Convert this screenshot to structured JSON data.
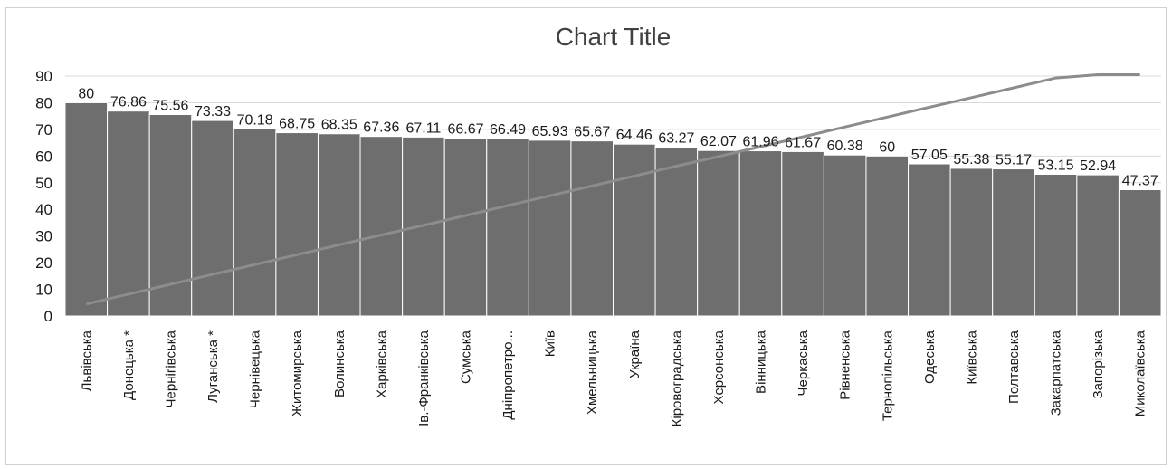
{
  "chart_data": {
    "type": "bar",
    "title": "Chart Title",
    "xlabel": "",
    "ylabel": "",
    "ylim": [
      0,
      90
    ],
    "yticks": [
      0,
      10,
      20,
      30,
      40,
      50,
      60,
      70,
      80,
      90
    ],
    "grid": true,
    "categories": [
      "Львівська",
      "Донецька *",
      "Чернігівська",
      "Луганська *",
      "Чернівецька",
      "Житомирська",
      "Волинська",
      "Харківська",
      "Ів.-Франківська",
      "Сумська",
      "Дніпропетро...",
      "Київ",
      "Хмельницька",
      "Україна",
      "Кіровоградська",
      "Херсонська",
      "Вінницька",
      "Черкаська",
      "Рівненська",
      "Тернопільська",
      "Одеська",
      "Київська",
      "Полтавська",
      "Закарпатська",
      "Запорізька",
      "Миколаївська"
    ],
    "values": [
      80,
      76.86,
      75.56,
      73.33,
      70.18,
      68.75,
      68.35,
      67.36,
      67.11,
      66.67,
      66.49,
      65.93,
      65.67,
      64.46,
      63.27,
      62.07,
      61.96,
      61.67,
      60.38,
      60,
      57.05,
      55.38,
      55.17,
      53.15,
      52.94,
      47.37
    ],
    "data_labels": [
      "80",
      "76.86",
      "75.56",
      "73.33",
      "70.18",
      "68.75",
      "68.35",
      "67.36",
      "67.11",
      "66.67",
      "66.49",
      "65.93",
      "65.67",
      "64.46",
      "63.27",
      "62.07",
      "61.96",
      "61.67",
      "60.38",
      "60",
      "57.05",
      "55.38",
      "55.17",
      "53.15",
      "52.94",
      "47.37"
    ],
    "line_series": {
      "values": [
        4.5,
        8.2,
        11.9,
        15.6,
        19.3,
        23.0,
        26.7,
        30.4,
        34.0,
        37.7,
        41.4,
        45.1,
        48.8,
        52.5,
        56.2,
        59.8,
        63.5,
        67.2,
        70.9,
        74.6,
        78.3,
        81.9,
        85.6,
        89.3,
        93.0,
        90.5
      ]
    },
    "colors": {
      "bar": "#6e6e6e",
      "line": "#8c8c8c",
      "grid": "#d9d9d9"
    }
  }
}
